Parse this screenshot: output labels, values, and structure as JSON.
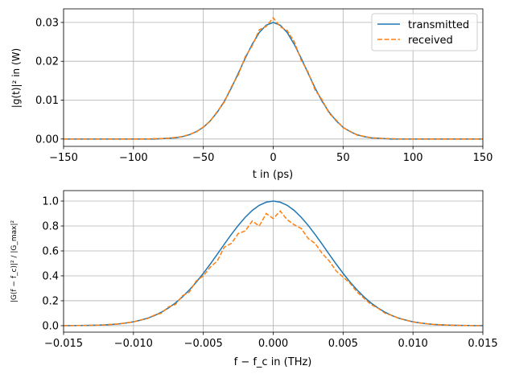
{
  "chart_data": [
    {
      "type": "line",
      "xlabel": "t in (ps)",
      "ylabel": "|g(t)|² in (W)",
      "xlim": [
        -150,
        150
      ],
      "ylim": [
        -0.0019,
        0.0335
      ],
      "xticks": [
        -150,
        -100,
        -50,
        0,
        50,
        100,
        150
      ],
      "xtick_labels": [
        "−150",
        "−100",
        "−50",
        "0",
        "50",
        "100",
        "150"
      ],
      "yticks": [
        0.0,
        0.01,
        0.02,
        0.03
      ],
      "ytick_labels": [
        "0.00",
        "0.01",
        "0.02",
        "0.03"
      ],
      "grid": true,
      "legend": "top-right",
      "x": [
        -150,
        -145,
        -140,
        -135,
        -130,
        -125,
        -120,
        -115,
        -110,
        -105,
        -100,
        -95,
        -90,
        -85,
        -80,
        -75,
        -70,
        -65,
        -60,
        -55,
        -50,
        -45,
        -40,
        -35,
        -30,
        -25,
        -20,
        -15,
        -10,
        -5,
        0,
        5,
        10,
        15,
        20,
        25,
        30,
        35,
        40,
        45,
        50,
        55,
        60,
        65,
        70,
        75,
        80,
        85,
        90,
        95,
        100,
        105,
        110,
        115,
        120,
        125,
        130,
        135,
        140,
        145,
        150
      ],
      "series": [
        {
          "name": "transmitted",
          "color": "#1f77b4",
          "style": "solid",
          "values": [
            0,
            0,
            0,
            0,
            0,
            0,
            0,
            0,
            0,
            0,
            0,
            0,
            0,
            0,
            0.0001,
            0.0002,
            0.0003,
            0.0006,
            0.0011,
            0.0019,
            0.003,
            0.0047,
            0.0069,
            0.0097,
            0.0131,
            0.0169,
            0.0208,
            0.0244,
            0.0274,
            0.0293,
            0.03,
            0.0293,
            0.0274,
            0.0244,
            0.0208,
            0.0169,
            0.0131,
            0.0097,
            0.0069,
            0.0047,
            0.003,
            0.0019,
            0.0011,
            0.0006,
            0.0003,
            0.0002,
            0.0001,
            0,
            0,
            0,
            0,
            0,
            0,
            0,
            0,
            0,
            0,
            0,
            0,
            0,
            0
          ]
        },
        {
          "name": "received",
          "color": "#ff7f0e",
          "style": "dashed",
          "values": [
            0,
            0,
            0,
            0,
            0,
            0,
            0,
            0,
            0,
            0,
            0,
            0,
            0,
            0.0001,
            0.0001,
            0.0002,
            0.0004,
            0.0006,
            0.0012,
            0.0018,
            0.0031,
            0.0046,
            0.0071,
            0.0095,
            0.0134,
            0.0165,
            0.0212,
            0.024,
            0.0281,
            0.029,
            0.0312,
            0.0289,
            0.0279,
            0.0251,
            0.0203,
            0.0172,
            0.0126,
            0.0101,
            0.0066,
            0.0049,
            0.0029,
            0.002,
            0.001,
            0.0007,
            0.0003,
            0.0002,
            0.0001,
            0.0001,
            0,
            0,
            0,
            0,
            0,
            0,
            0,
            0,
            0,
            0,
            0,
            0,
            0
          ]
        }
      ]
    },
    {
      "type": "line",
      "xlabel": "f − f_c in (THz)",
      "ylabel": "|G(f − f_c)|² / |G_max|²",
      "xlim": [
        -0.015,
        0.015
      ],
      "ylim": [
        -0.052,
        1.084
      ],
      "xticks": [
        -0.015,
        -0.01,
        -0.005,
        0,
        0.005,
        0.01,
        0.015
      ],
      "xtick_labels": [
        "−0.015",
        "−0.010",
        "−0.005",
        "0.000",
        "0.005",
        "0.010",
        "0.015"
      ],
      "yticks": [
        0,
        0.2,
        0.4,
        0.6,
        0.8,
        1.0
      ],
      "ytick_labels": [
        "0.0",
        "0.2",
        "0.4",
        "0.6",
        "0.8",
        "1.0"
      ],
      "grid": true,
      "x": [
        -0.015,
        -0.0145,
        -0.014,
        -0.0135,
        -0.013,
        -0.0125,
        -0.012,
        -0.0115,
        -0.011,
        -0.0105,
        -0.01,
        -0.0095,
        -0.009,
        -0.0085,
        -0.008,
        -0.0075,
        -0.007,
        -0.0065,
        -0.006,
        -0.0055,
        -0.005,
        -0.0045,
        -0.004,
        -0.0035,
        -0.003,
        -0.0025,
        -0.002,
        -0.0015,
        -0.001,
        -0.0005,
        0,
        0.0005,
        0.001,
        0.0015,
        0.002,
        0.0025,
        0.003,
        0.0035,
        0.004,
        0.0045,
        0.005,
        0.0055,
        0.006,
        0.0065,
        0.007,
        0.0075,
        0.008,
        0.0085,
        0.009,
        0.0095,
        0.01,
        0.0105,
        0.011,
        0.0115,
        0.012,
        0.0125,
        0.013,
        0.0135,
        0.014,
        0.0145,
        0.015
      ],
      "series": [
        {
          "name": "transmitted",
          "color": "#1f77b4",
          "style": "solid",
          "values": [
            0.0004,
            0.0007,
            0.0011,
            0.0018,
            0.0028,
            0.0044,
            0.0067,
            0.01,
            0.015,
            0.022,
            0.031,
            0.044,
            0.06,
            0.081,
            0.108,
            0.142,
            0.182,
            0.231,
            0.287,
            0.35,
            0.42,
            0.495,
            0.574,
            0.654,
            0.732,
            0.805,
            0.87,
            0.925,
            0.966,
            0.991,
            1.0,
            0.991,
            0.966,
            0.925,
            0.87,
            0.805,
            0.732,
            0.654,
            0.574,
            0.495,
            0.42,
            0.35,
            0.287,
            0.231,
            0.182,
            0.142,
            0.108,
            0.081,
            0.06,
            0.044,
            0.031,
            0.022,
            0.015,
            0.01,
            0.0067,
            0.0044,
            0.0028,
            0.0018,
            0.0011,
            0.0007,
            0.0004
          ]
        },
        {
          "name": "received",
          "color": "#ff7f0e",
          "style": "dashed",
          "values": [
            0.0004,
            0.0007,
            0.0012,
            0.0017,
            0.003,
            0.0045,
            0.0065,
            0.011,
            0.014,
            0.023,
            0.03,
            0.046,
            0.057,
            0.085,
            0.1,
            0.15,
            0.17,
            0.24,
            0.27,
            0.36,
            0.4,
            0.47,
            0.52,
            0.63,
            0.66,
            0.74,
            0.76,
            0.84,
            0.8,
            0.9,
            0.86,
            0.92,
            0.85,
            0.81,
            0.78,
            0.7,
            0.66,
            0.58,
            0.52,
            0.44,
            0.39,
            0.34,
            0.27,
            0.22,
            0.17,
            0.14,
            0.1,
            0.082,
            0.058,
            0.045,
            0.03,
            0.022,
            0.015,
            0.01,
            0.0066,
            0.0044,
            0.0028,
            0.0018,
            0.0011,
            0.0007,
            0.0004
          ]
        }
      ]
    }
  ]
}
